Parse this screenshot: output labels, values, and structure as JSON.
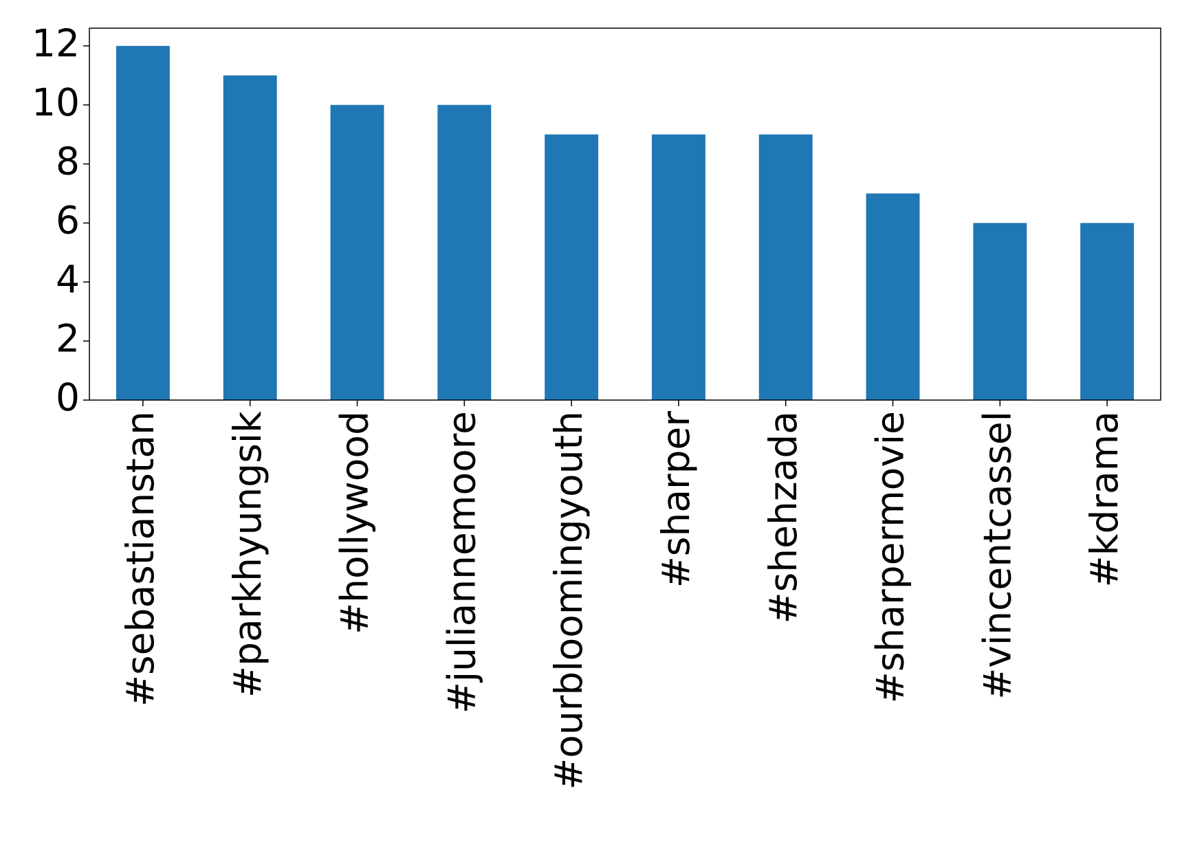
{
  "chart_data": {
    "type": "bar",
    "categories": [
      "#sebastianstan",
      "#parkhyungsik",
      "#hollywood",
      "#juliannemoore",
      "#ourbloomingyouth",
      "#sharper",
      "#shehzada",
      "#sharpermovie",
      "#vincentcassel",
      "#kdrama"
    ],
    "values": [
      12,
      11,
      10,
      10,
      9,
      9,
      9,
      7,
      6,
      6
    ],
    "color": "#1f77b4",
    "ylim": [
      0,
      12.6
    ],
    "yticks": [
      0,
      2,
      4,
      6,
      8,
      10,
      12
    ],
    "grid": false
  }
}
